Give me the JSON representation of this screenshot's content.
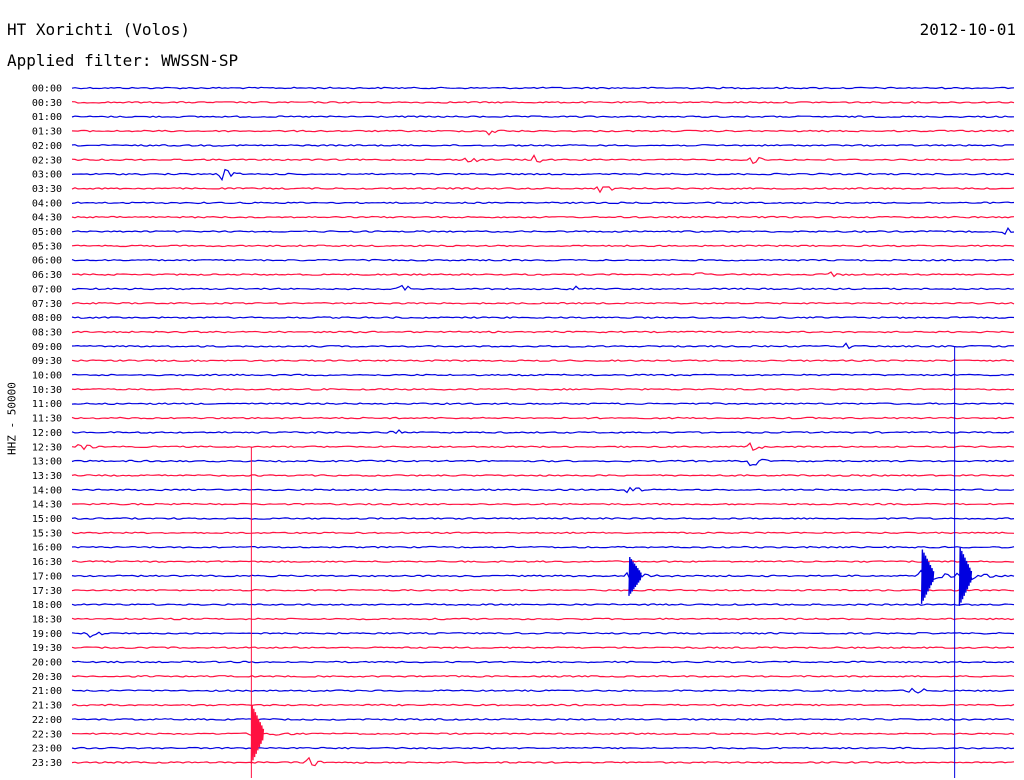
{
  "header": {
    "station": "HT Xorichti (Volos)",
    "filter": "Applied filter: WWSSN-SP",
    "date": "2012-10-01"
  },
  "chart_data": {
    "type": "line",
    "title": "HT Xorichti (Volos)",
    "subtitle": "Applied filter: WWSSN-SP",
    "date": "2012-10-01",
    "ylabel": "HHZ - 50000",
    "xlabel": "",
    "rows": [
      "00:00",
      "00:30",
      "01:00",
      "01:30",
      "02:00",
      "02:30",
      "03:00",
      "03:30",
      "04:00",
      "04:30",
      "05:00",
      "05:30",
      "06:00",
      "06:30",
      "07:00",
      "07:30",
      "08:00",
      "08:30",
      "09:00",
      "09:30",
      "10:00",
      "10:30",
      "11:00",
      "11:30",
      "12:00",
      "12:30",
      "13:00",
      "13:30",
      "14:00",
      "14:30",
      "15:00",
      "15:30",
      "16:00",
      "16:30",
      "17:00",
      "17:30",
      "18:00",
      "18:30",
      "19:00",
      "19:30",
      "20:00",
      "20:30",
      "21:00",
      "21:30",
      "22:00",
      "22:30",
      "23:00",
      "23:30"
    ],
    "trace_colors": [
      "#0000e0",
      "#ff1040"
    ],
    "grid": false,
    "events": [
      {
        "row": "01:30",
        "at": 0.44,
        "amp": 6
      },
      {
        "row": "02:30",
        "at": 0.42,
        "amp": 5
      },
      {
        "row": "02:30",
        "at": 0.49,
        "amp": 5
      },
      {
        "row": "02:30",
        "at": 0.72,
        "amp": 5
      },
      {
        "row": "03:00",
        "at": 0.16,
        "amp": 7
      },
      {
        "row": "03:30",
        "at": 0.56,
        "amp": 6
      },
      {
        "row": "05:00",
        "at": 0.99,
        "amp": 6
      },
      {
        "row": "06:30",
        "at": 0.66,
        "amp": 4
      },
      {
        "row": "06:30",
        "at": 0.8,
        "amp": 5
      },
      {
        "row": "07:00",
        "at": 0.35,
        "amp": 5
      },
      {
        "row": "07:00",
        "at": 0.53,
        "amp": 5
      },
      {
        "row": "09:00",
        "at": 0.82,
        "amp": 4
      },
      {
        "row": "12:00",
        "at": 0.34,
        "amp": 5
      },
      {
        "row": "12:30",
        "at": 0.01,
        "amp": 5
      },
      {
        "row": "12:30",
        "at": 0.72,
        "amp": 5
      },
      {
        "row": "13:00",
        "at": 0.72,
        "amp": 7
      },
      {
        "row": "14:00",
        "at": 0.59,
        "amp": 6
      },
      {
        "row": "17:00",
        "at": 0.59,
        "amp": 20
      },
      {
        "row": "17:00",
        "at": 0.9,
        "amp": 28
      },
      {
        "row": "17:00",
        "at": 0.94,
        "amp": 30
      },
      {
        "row": "19:00",
        "at": 0.02,
        "amp": 6
      },
      {
        "row": "21:00",
        "at": 0.89,
        "amp": 7
      },
      {
        "row": "22:30",
        "at": 0.19,
        "amp": 30
      },
      {
        "row": "23:30",
        "at": 0.25,
        "amp": 7
      }
    ]
  }
}
